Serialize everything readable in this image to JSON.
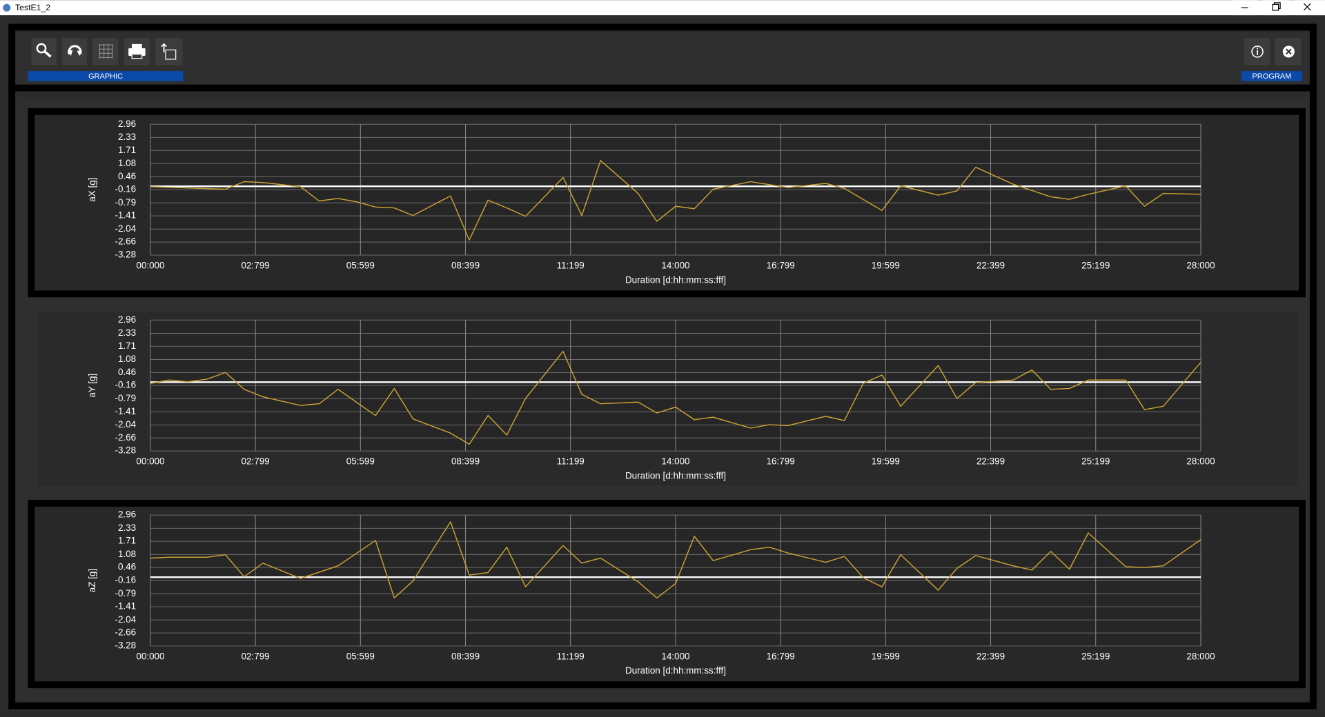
{
  "window": {
    "title": "TestE1_2"
  },
  "toolbar": {
    "graphic_label": "GRAPHIC",
    "program_label": "PROGRAM"
  },
  "chart_data": [
    {
      "type": "line",
      "y_label": "aX [g]",
      "x_label": "Duration [d:hh:mm:ss:fff]",
      "color": "#c9a233",
      "grid": true,
      "baseline": 0,
      "baseline_color": "#ffffff",
      "xlim": [
        0,
        28
      ],
      "ylim": [
        -3.28,
        2.96
      ],
      "xticks": [
        {
          "value": 0,
          "label": "00:000"
        },
        {
          "value": 2.799,
          "label": "02:799"
        },
        {
          "value": 5.599,
          "label": "05:599"
        },
        {
          "value": 8.399,
          "label": "08:399"
        },
        {
          "value": 11.199,
          "label": "11:199"
        },
        {
          "value": 14,
          "label": "14:000"
        },
        {
          "value": 16.799,
          "label": "16:799"
        },
        {
          "value": 19.599,
          "label": "19:599"
        },
        {
          "value": 22.399,
          "label": "22:399"
        },
        {
          "value": 25.199,
          "label": "25:199"
        },
        {
          "value": 28,
          "label": "28:000"
        }
      ],
      "yticks": [
        2.96,
        2.33,
        1.71,
        1.08,
        0.46,
        -0.16,
        -0.79,
        -1.41,
        -2.04,
        -2.66,
        -3.28
      ],
      "x": [
        0,
        2.0,
        2.5,
        3.0,
        4.0,
        4.5,
        5.0,
        5.5,
        6.0,
        6.5,
        7.0,
        8.0,
        8.5,
        9.0,
        9.5,
        10.0,
        11.0,
        11.5,
        12.0,
        13.0,
        13.5,
        14.0,
        14.5,
        15.0,
        16.0,
        17.0,
        18.0,
        18.5,
        19.5,
        20.0,
        21.0,
        21.5,
        22.0,
        23.0,
        24.0,
        24.5,
        25.0,
        26.0,
        26.5,
        27.0,
        28.0
      ],
      "values": [
        -0.02,
        -0.14,
        0.22,
        0.18,
        -0.02,
        -0.7,
        -0.58,
        -0.74,
        -0.99,
        -1.03,
        -1.39,
        -0.46,
        -2.56,
        -0.66,
        -1.03,
        -1.43,
        0.42,
        -1.39,
        1.23,
        -0.34,
        -1.67,
        -0.95,
        -1.07,
        -0.14,
        0.22,
        -0.06,
        0.14,
        -0.1,
        -1.15,
        0.02,
        -0.42,
        -0.22,
        0.91,
        0.1,
        -0.5,
        -0.62,
        -0.38,
        0.02,
        -0.95,
        -0.34,
        -0.38
      ]
    },
    {
      "type": "line",
      "y_label": "aY [g]",
      "x_label": "Duration [d:hh:mm:ss:fff]",
      "color": "#c9a233",
      "grid": true,
      "baseline": 0,
      "baseline_color": "#ffffff",
      "xlim": [
        0,
        28
      ],
      "ylim": [
        -3.28,
        2.96
      ],
      "xticks": [
        {
          "value": 0,
          "label": "00:000"
        },
        {
          "value": 2.799,
          "label": "02:799"
        },
        {
          "value": 5.599,
          "label": "05:599"
        },
        {
          "value": 8.399,
          "label": "08:399"
        },
        {
          "value": 11.199,
          "label": "11:199"
        },
        {
          "value": 14,
          "label": "14:000"
        },
        {
          "value": 16.799,
          "label": "16:799"
        },
        {
          "value": 19.599,
          "label": "19:599"
        },
        {
          "value": 22.399,
          "label": "22:399"
        },
        {
          "value": 25.199,
          "label": "25:199"
        },
        {
          "value": 28,
          "label": "28:000"
        }
      ],
      "yticks": [
        2.96,
        2.33,
        1.71,
        1.08,
        0.46,
        -0.16,
        -0.79,
        -1.41,
        -2.04,
        -2.66,
        -3.28
      ],
      "x": [
        0,
        0.5,
        1.0,
        1.5,
        2.0,
        2.5,
        3.0,
        4.0,
        4.5,
        5.0,
        6.0,
        6.5,
        7.0,
        8.0,
        8.5,
        9.0,
        9.5,
        10.0,
        11.0,
        11.5,
        12.0,
        13.0,
        13.5,
        14.0,
        14.5,
        15.0,
        16.0,
        16.5,
        17.0,
        18.0,
        18.5,
        19.0,
        19.5,
        20.0,
        21.0,
        21.5,
        22.0,
        23.0,
        23.5,
        24.0,
        24.5,
        25.0,
        26.0,
        26.5,
        27.0,
        28.0
      ],
      "values": [
        -0.06,
        0.1,
        0.02,
        0.14,
        0.46,
        -0.34,
        -0.7,
        -1.11,
        -1.03,
        -0.34,
        -1.59,
        -0.3,
        -1.75,
        -2.43,
        -2.96,
        -1.59,
        -2.52,
        -0.78,
        1.47,
        -0.58,
        -1.03,
        -0.95,
        -1.47,
        -1.19,
        -1.79,
        -1.67,
        -2.19,
        -2.03,
        -2.07,
        -1.63,
        -1.83,
        -0.06,
        0.34,
        -1.15,
        0.79,
        -0.78,
        -0.02,
        0.1,
        0.58,
        -0.34,
        -0.3,
        0.1,
        0.1,
        -1.31,
        -1.15,
        0.95
      ]
    },
    {
      "type": "line",
      "y_label": "aZ [g]",
      "x_label": "Duration [d:hh:mm:ss:fff]",
      "color": "#c9a233",
      "grid": true,
      "baseline": 0,
      "baseline_color": "#ffffff",
      "xlim": [
        0,
        28
      ],
      "ylim": [
        -3.28,
        2.96
      ],
      "xticks": [
        {
          "value": 0,
          "label": "00:000"
        },
        {
          "value": 2.799,
          "label": "02:799"
        },
        {
          "value": 5.599,
          "label": "05:599"
        },
        {
          "value": 8.399,
          "label": "08:399"
        },
        {
          "value": 11.199,
          "label": "11:199"
        },
        {
          "value": 14,
          "label": "14:000"
        },
        {
          "value": 16.799,
          "label": "16:799"
        },
        {
          "value": 19.599,
          "label": "19:599"
        },
        {
          "value": 22.399,
          "label": "22:399"
        },
        {
          "value": 25.199,
          "label": "25:199"
        },
        {
          "value": 28,
          "label": "28:000"
        }
      ],
      "yticks": [
        2.96,
        2.33,
        1.71,
        1.08,
        0.46,
        -0.16,
        -0.79,
        -1.41,
        -2.04,
        -2.66,
        -3.28
      ],
      "x": [
        0,
        0.5,
        1.5,
        2.0,
        2.5,
        3.0,
        4.0,
        5.0,
        6.0,
        6.5,
        7.0,
        8.0,
        8.5,
        9.0,
        9.5,
        10.0,
        11.0,
        11.5,
        12.0,
        13.0,
        13.5,
        14.0,
        14.5,
        15.0,
        16.0,
        16.5,
        17.0,
        18.0,
        18.5,
        19.0,
        19.5,
        20.0,
        21.0,
        21.5,
        22.0,
        23.0,
        23.5,
        24.0,
        24.5,
        25.0,
        26.0,
        26.5,
        27.0,
        28.0
      ],
      "values": [
        0.91,
        0.95,
        0.95,
        1.07,
        0.02,
        0.67,
        -0.06,
        0.54,
        1.75,
        -0.99,
        -0.18,
        2.64,
        0.1,
        0.22,
        1.43,
        -0.46,
        1.51,
        0.67,
        0.91,
        -0.22,
        -0.99,
        -0.3,
        1.95,
        0.79,
        1.31,
        1.43,
        1.15,
        0.71,
        0.99,
        -0.02,
        -0.46,
        1.07,
        -0.62,
        0.42,
        1.03,
        0.54,
        0.34,
        1.23,
        0.38,
        2.11,
        0.5,
        0.46,
        0.54,
        1.79
      ]
    }
  ]
}
